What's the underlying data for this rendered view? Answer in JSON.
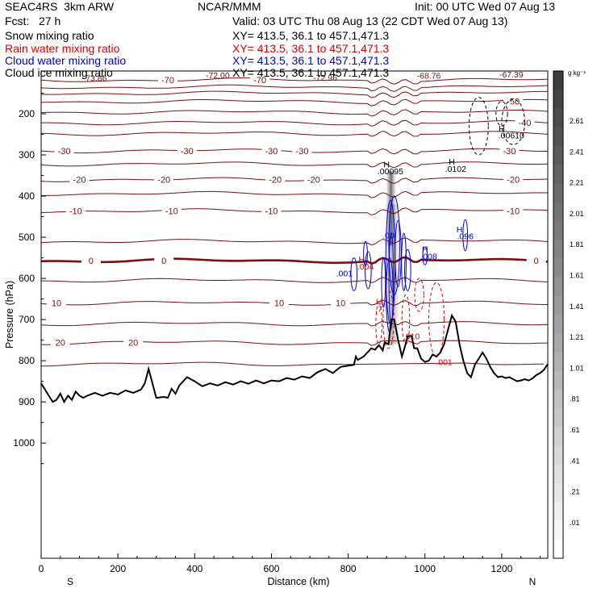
{
  "header": {
    "model": "SEAC4RS  3km ARW",
    "org": "NCAR/MMM",
    "init": "Init: 00 UTC Wed 07 Aug 13",
    "fcst": "Fcst:   27 h",
    "valid": "Valid: 03 UTC Thu 08 Aug 13 (22 CDT Wed 07 Aug 13)"
  },
  "fields": [
    {
      "name": "Snow mixing ratio",
      "xy": "XY= 413.5, 36.1 to 457.1,471.3",
      "color": "#000000"
    },
    {
      "name": "Rain water mixing ratio",
      "xy": "XY= 413.5, 36.1 to 457.1,471.3",
      "color": "#e00000"
    },
    {
      "name": "Cloud water mixing ratio",
      "xy": "XY= 413.5, 36.1 to 457.1,471.3",
      "color": "#0000dd"
    },
    {
      "name": "Cloud ice mixing ratio",
      "xy": "XY= 413.5, 36.1 to 457.1,471.3",
      "color": "#000000"
    }
  ],
  "chart_data": {
    "type": "cross-section contour",
    "xlabel": "Distance (km)",
    "ylabel": "Pressure (hPa)",
    "xlim": [
      0,
      1320
    ],
    "ylim": [
      100,
      1050
    ],
    "x_ticks": [
      0,
      200,
      400,
      600,
      800,
      1000,
      1200
    ],
    "y_ticks": [
      200,
      300,
      400,
      500,
      600,
      700,
      800,
      900,
      1000
    ],
    "x_end_labels": [
      "S",
      "N"
    ],
    "colorbar": {
      "unit": "g kg⁻¹",
      "levels": [
        "2.61",
        "2.41",
        "2.21",
        "2.01",
        "1.81",
        "1.61",
        "1.41",
        "1.21",
        "1.01",
        ".81",
        ".61",
        ".41",
        ".21",
        ".01"
      ]
    },
    "isotherm_color": "#7a1010",
    "terrain_color": "#000000",
    "terrain": [
      [
        0,
        855
      ],
      [
        10,
        870
      ],
      [
        20,
        885
      ],
      [
        30,
        900
      ],
      [
        40,
        895
      ],
      [
        50,
        880
      ],
      [
        60,
        900
      ],
      [
        70,
        885
      ],
      [
        80,
        895
      ],
      [
        90,
        875
      ],
      [
        100,
        885
      ],
      [
        110,
        890
      ],
      [
        120,
        885
      ],
      [
        140,
        878
      ],
      [
        160,
        885
      ],
      [
        180,
        878
      ],
      [
        200,
        882
      ],
      [
        220,
        872
      ],
      [
        240,
        878
      ],
      [
        260,
        870
      ],
      [
        270,
        855
      ],
      [
        280,
        820
      ],
      [
        290,
        855
      ],
      [
        300,
        890
      ],
      [
        320,
        888
      ],
      [
        330,
        890
      ],
      [
        340,
        868
      ],
      [
        350,
        880
      ],
      [
        360,
        860
      ],
      [
        380,
        840
      ],
      [
        400,
        850
      ],
      [
        420,
        862
      ],
      [
        440,
        855
      ],
      [
        460,
        860
      ],
      [
        480,
        852
      ],
      [
        500,
        858
      ],
      [
        520,
        850
      ],
      [
        540,
        856
      ],
      [
        560,
        848
      ],
      [
        580,
        855
      ],
      [
        600,
        848
      ],
      [
        620,
        850
      ],
      [
        640,
        842
      ],
      [
        660,
        846
      ],
      [
        680,
        838
      ],
      [
        700,
        842
      ],
      [
        720,
        828
      ],
      [
        740,
        820
      ],
      [
        760,
        830
      ],
      [
        780,
        815
      ],
      [
        800,
        812
      ],
      [
        815,
        810
      ],
      [
        820,
        790
      ],
      [
        825,
        798
      ],
      [
        840,
        790
      ],
      [
        850,
        780
      ],
      [
        860,
        770
      ],
      [
        870,
        773
      ],
      [
        880,
        762
      ],
      [
        890,
        775
      ],
      [
        895,
        755
      ],
      [
        905,
        760
      ],
      [
        912,
        700
      ],
      [
        920,
        700
      ],
      [
        930,
        750
      ],
      [
        940,
        790
      ],
      [
        948,
        765
      ],
      [
        955,
        740
      ],
      [
        965,
        740
      ],
      [
        972,
        770
      ],
      [
        980,
        770
      ],
      [
        990,
        795
      ],
      [
        1000,
        803
      ],
      [
        1010,
        800
      ],
      [
        1020,
        785
      ],
      [
        1030,
        790
      ],
      [
        1040,
        780
      ],
      [
        1050,
        760
      ],
      [
        1060,
        725
      ],
      [
        1070,
        690
      ],
      [
        1080,
        705
      ],
      [
        1090,
        760
      ],
      [
        1100,
        800
      ],
      [
        1110,
        830
      ],
      [
        1120,
        840
      ],
      [
        1130,
        810
      ],
      [
        1140,
        795
      ],
      [
        1150,
        780
      ],
      [
        1160,
        795
      ],
      [
        1170,
        815
      ],
      [
        1180,
        830
      ],
      [
        1190,
        840
      ],
      [
        1200,
        838
      ],
      [
        1210,
        842
      ],
      [
        1220,
        840
      ],
      [
        1230,
        845
      ],
      [
        1240,
        850
      ],
      [
        1250,
        848
      ],
      [
        1260,
        845
      ],
      [
        1270,
        848
      ],
      [
        1280,
        843
      ],
      [
        1290,
        835
      ],
      [
        1300,
        830
      ],
      [
        1310,
        822
      ],
      [
        1320,
        808
      ]
    ],
    "isotherms": [
      {
        "label": "-70",
        "p": 118,
        "labels_at": [
          {
            "x": 330,
            "text": "-70"
          },
          {
            "x": 570,
            "text": "-70"
          }
        ]
      },
      {
        "label": "-60",
        "p": 135
      },
      {
        "label": "-55",
        "p": 150
      },
      {
        "label": "-50",
        "p": 170,
        "labels_at": [
          {
            "x": 1230,
            "text": "-50"
          }
        ]
      },
      {
        "label": "-45",
        "p": 196
      },
      {
        "label": "-40",
        "p": 222,
        "labels_at": [
          {
            "x": 1260,
            "text": "-40"
          }
        ]
      },
      {
        "label": "-35",
        "p": 248
      },
      {
        "label": "-30",
        "p": 290,
        "labels_at": [
          {
            "x": 60,
            "text": "-30"
          },
          {
            "x": 380,
            "text": "-30"
          },
          {
            "x": 600,
            "text": "-30"
          },
          {
            "x": 680,
            "text": "-30"
          },
          {
            "x": 1220,
            "text": "-30"
          }
        ]
      },
      {
        "label": "-25",
        "p": 322
      },
      {
        "label": "-20",
        "p": 360,
        "labels_at": [
          {
            "x": 100,
            "text": "-20"
          },
          {
            "x": 320,
            "text": "-20"
          },
          {
            "x": 610,
            "text": "-20"
          },
          {
            "x": 710,
            "text": "-20"
          },
          {
            "x": 1230,
            "text": "-20"
          }
        ]
      },
      {
        "label": "-15",
        "p": 394
      },
      {
        "label": "-10",
        "p": 436,
        "labels_at": [
          {
            "x": 90,
            "text": "-10"
          },
          {
            "x": 340,
            "text": "-10"
          },
          {
            "x": 600,
            "text": "-10"
          },
          {
            "x": 1230,
            "text": "-10"
          }
        ]
      },
      {
        "label": "-5",
        "p": 510
      },
      {
        "label": "0",
        "p": 557,
        "bold": true,
        "labels_at": [
          {
            "x": 130,
            "text": "0"
          },
          {
            "x": 320,
            "text": "0"
          },
          {
            "x": 1290,
            "text": "0"
          }
        ]
      },
      {
        "label": "5",
        "p": 605
      },
      {
        "label": "10",
        "p": 660,
        "labels_at": [
          {
            "x": 40,
            "text": "10"
          },
          {
            "x": 620,
            "text": "10"
          },
          {
            "x": 780,
            "text": "10"
          }
        ]
      },
      {
        "label": "15",
        "p": 710
      },
      {
        "label": "20",
        "p": 756,
        "labels_at": [
          {
            "x": 50,
            "text": "20"
          },
          {
            "x": 240,
            "text": "20"
          }
        ]
      },
      {
        "label": "25",
        "p": 808
      }
    ],
    "annotations": [
      {
        "x": 140,
        "p": 113,
        "text": "-73.86",
        "color": "#7a1010"
      },
      {
        "x": 460,
        "p": 106,
        "text": "-72.00",
        "color": "#7a1010"
      },
      {
        "x": 740,
        "p": 112,
        "text": "-72.96",
        "color": "#7a1010"
      },
      {
        "x": 1010,
        "p": 107,
        "text": "-68.76",
        "color": "#7a1010"
      },
      {
        "x": 1225,
        "p": 104,
        "text": "-67.39",
        "color": "#7a1010"
      },
      {
        "x": 900,
        "p": 322,
        "text": "H",
        "color": "#000000"
      },
      {
        "x": 910,
        "p": 339,
        "text": ".00095",
        "color": "#000000"
      },
      {
        "x": 1070,
        "p": 316,
        "text": "H",
        "color": "#000000"
      },
      {
        "x": 1080,
        "p": 333,
        "text": ".0102",
        "color": "#000000"
      },
      {
        "x": 1200,
        "p": 235,
        "text": "H",
        "color": "#000000"
      },
      {
        "x": 1225,
        "p": 252,
        "text": ".00610",
        "color": "#000000"
      },
      {
        "x": 1090,
        "p": 480,
        "text": "H",
        "color": "#0000dd"
      },
      {
        "x": 1105,
        "p": 497,
        "text": ".096",
        "color": "#0000dd"
      },
      {
        "x": 1000,
        "p": 528,
        "text": "H",
        "color": "#0000dd"
      },
      {
        "x": 1010,
        "p": 546,
        "text": ".008",
        "color": "#0000dd"
      },
      {
        "x": 905,
        "p": 495,
        "text": ".00",
        "color": "#0000dd"
      },
      {
        "x": 790,
        "p": 587,
        "text": ".001",
        "color": "#0000dd"
      },
      {
        "x": 835,
        "p": 553,
        "text": "H",
        "color": "#7a1010"
      },
      {
        "x": 845,
        "p": 570,
        "text": ".004",
        "color": "#e00000"
      },
      {
        "x": 880,
        "p": 656,
        "text": "H",
        "color": "#e00000"
      },
      {
        "x": 880,
        "p": 673,
        "text": ".7",
        "color": "#e00000"
      },
      {
        "x": 965,
        "p": 740,
        "text": ".010",
        "color": "#e00000"
      },
      {
        "x": 1050,
        "p": 803,
        "text": ".001",
        "color": "#e00000"
      }
    ]
  }
}
